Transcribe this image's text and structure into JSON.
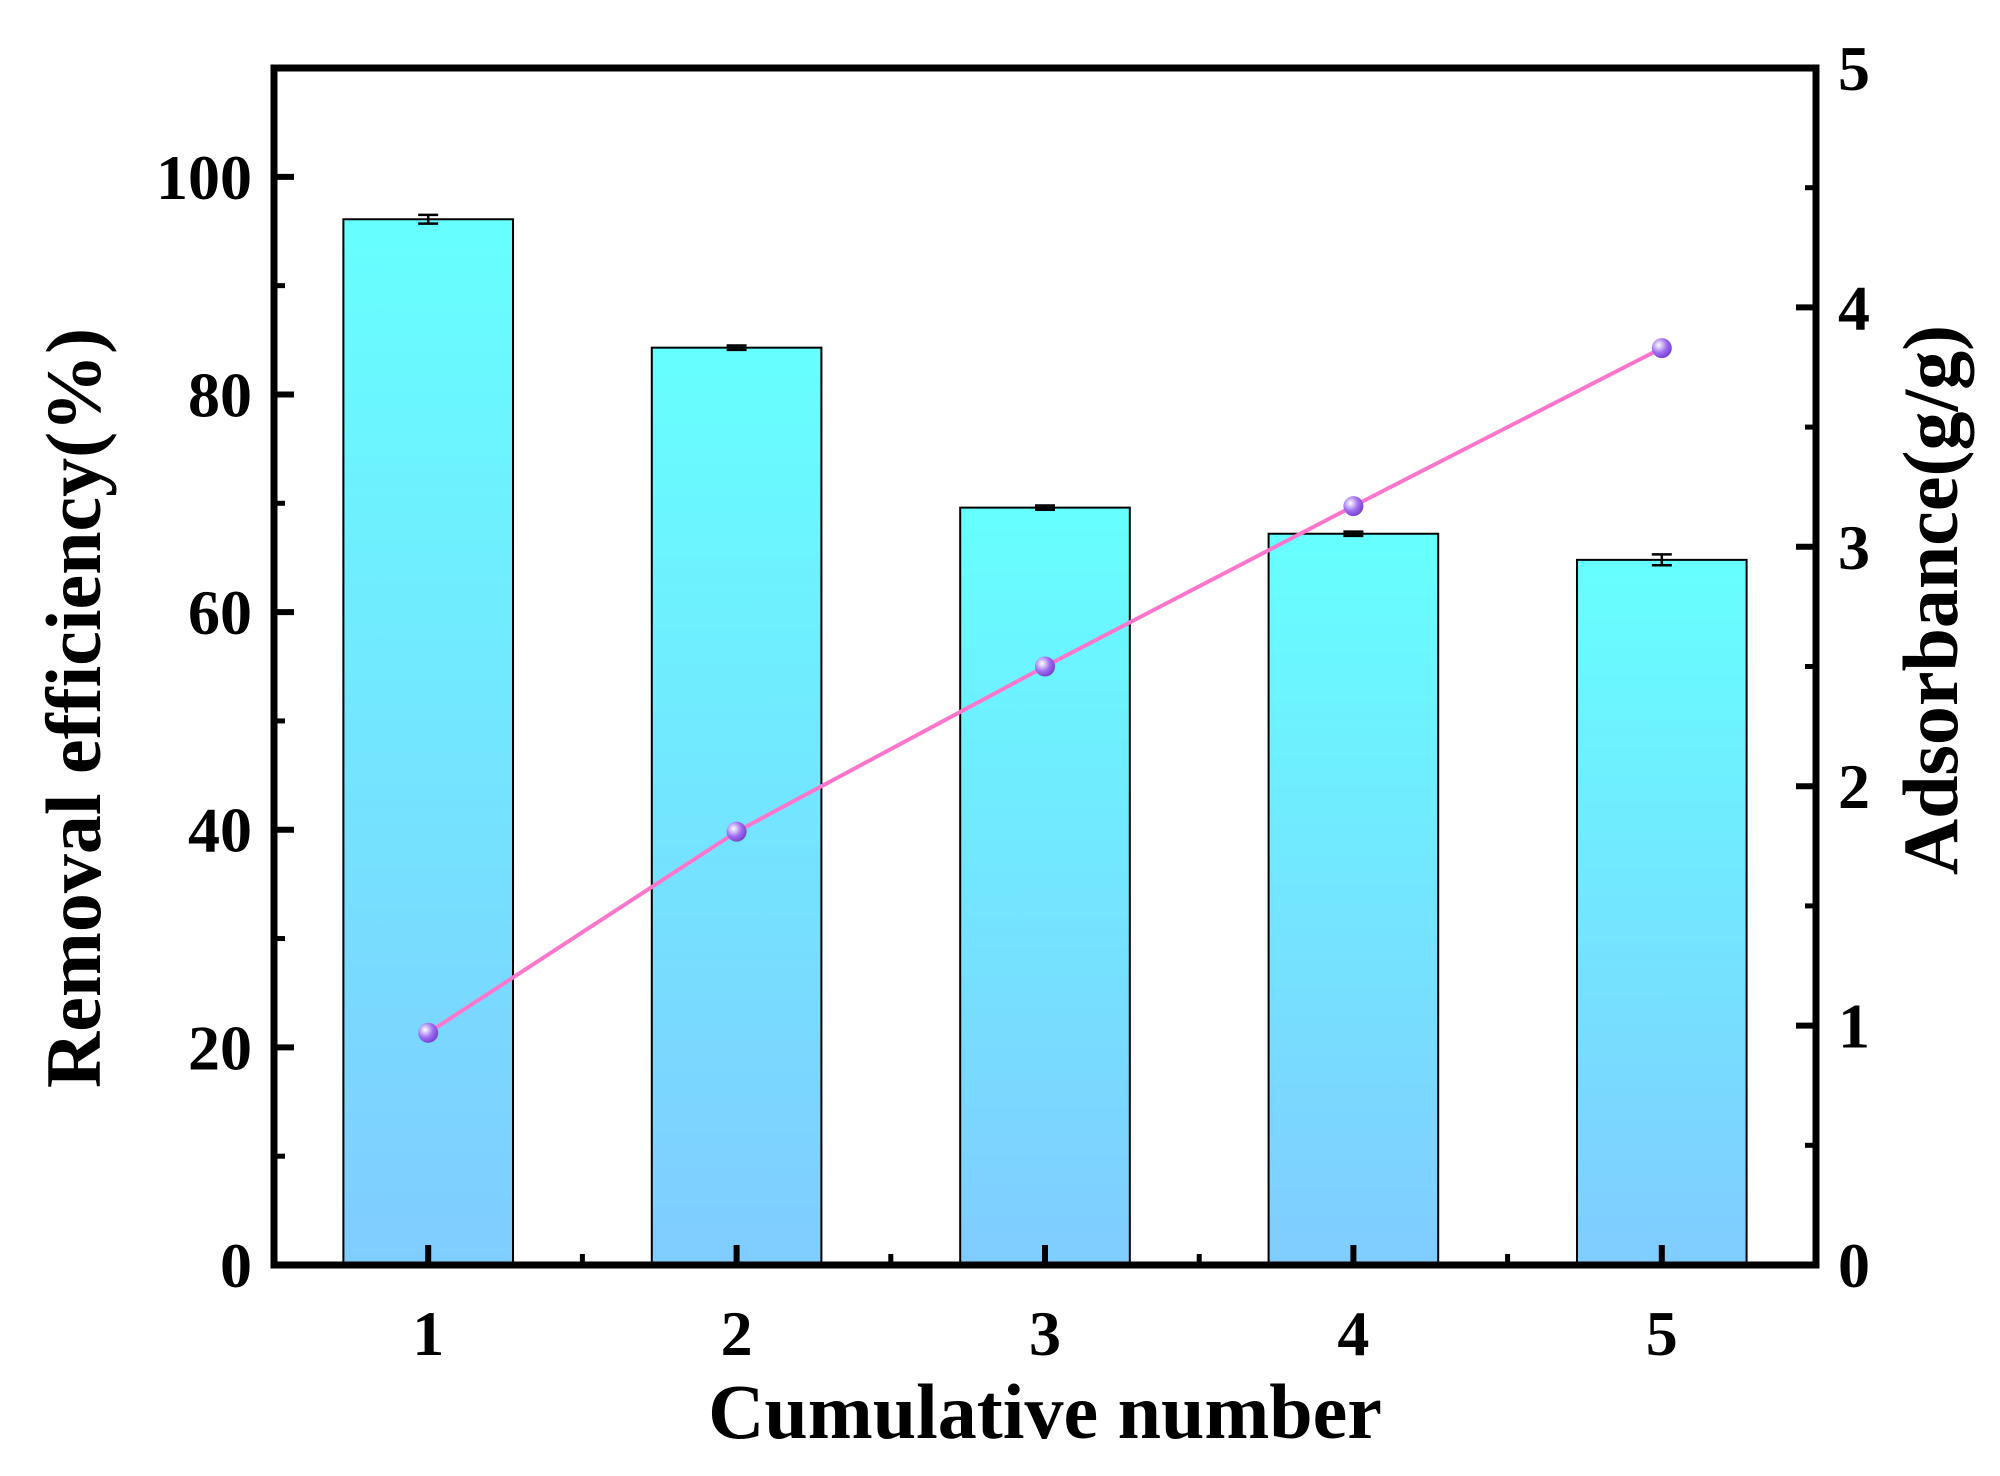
{
  "chart_data": {
    "type": "bar",
    "title": "",
    "xlabel": "Cumulative number",
    "ylabel": "Removal efficiency(%)",
    "y2label": "Adsorbance(g/g)",
    "categories": [
      "1",
      "2",
      "3",
      "4",
      "5"
    ],
    "xlim": [
      0.5,
      5.5
    ],
    "ylim": [
      0,
      110
    ],
    "y2lim": [
      0,
      5
    ],
    "yticks": [
      0,
      20,
      40,
      60,
      80,
      100
    ],
    "y2ticks": [
      0,
      1,
      2,
      3,
      4,
      5
    ],
    "grid": false,
    "legend": "none",
    "series": [
      {
        "kind": "bar",
        "axis": "left",
        "values": [
          96.1,
          84.3,
          69.6,
          67.2,
          64.8
        ],
        "errors": [
          0.4,
          0.2,
          0.2,
          0.2,
          0.5
        ],
        "color_top": "#66ffff",
        "color_bottom": "#80ccff"
      },
      {
        "kind": "line",
        "axis": "right",
        "values": [
          0.97,
          1.81,
          2.5,
          3.17,
          3.83
        ],
        "color": "#ff77cc",
        "marker_color": "#9f6ef0"
      }
    ]
  }
}
